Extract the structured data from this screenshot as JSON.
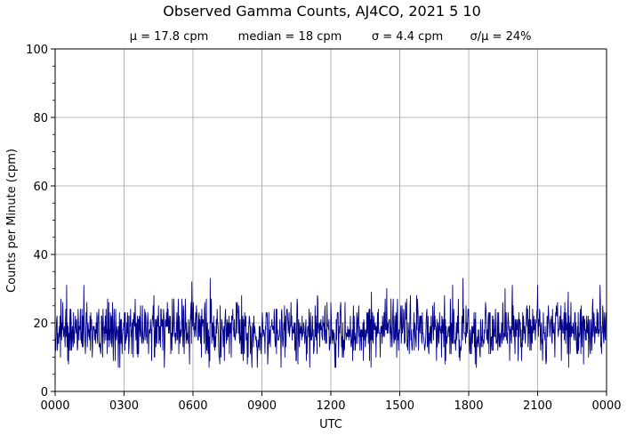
{
  "chart_data": {
    "type": "line",
    "title": "Observed Gamma Counts, AJ4CO, 2021 5 10",
    "stats": {
      "mean": "μ = 17.8 cpm",
      "median": "median = 18 cpm",
      "sigma": "σ = 4.4 cpm",
      "ratio": "σ/μ = 24%"
    },
    "xlabel": "UTC",
    "ylabel": "Counts per Minute (cpm)",
    "x_ticks": [
      "0000",
      "0300",
      "0600",
      "0900",
      "1200",
      "1500",
      "1800",
      "2100",
      "0000"
    ],
    "y_ticks": [
      "0",
      "20",
      "40",
      "60",
      "80",
      "100"
    ],
    "ylim": [
      0,
      100
    ],
    "xlim_minutes": [
      0,
      1440
    ],
    "grid": true,
    "series_color": "#00008b",
    "sample_interval_minutes": 1,
    "mean_cpm": 17.8,
    "std_cpm": 4.4,
    "y_range_observed": [
      7,
      33
    ],
    "peak_values": [
      {
        "utc": "0557",
        "cpm": 32
      },
      {
        "utc": "0645",
        "cpm": 33
      },
      {
        "utc": "1745",
        "cpm": 33
      },
      {
        "utc": "1954",
        "cpm": 31
      },
      {
        "utc": "2100",
        "cpm": 31
      }
    ]
  }
}
